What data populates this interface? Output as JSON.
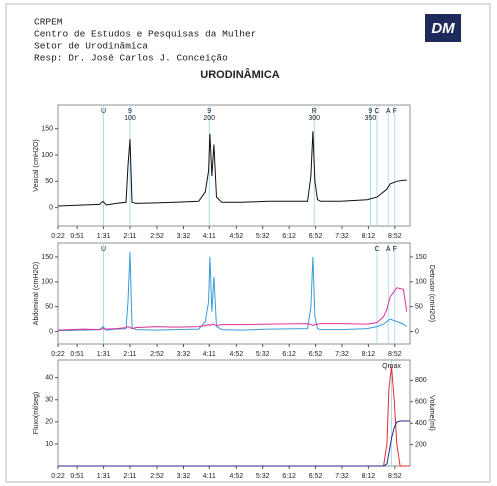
{
  "header": {
    "lines": [
      "CRPEM",
      "Centro de Estudos e Pesquisas da Mulher",
      "Setor de Urodinâmica",
      "Resp: Dr. José Carlos J. Conceição"
    ],
    "title": "URODINÂMICA",
    "logo": "DM"
  },
  "chart_data": [
    {
      "type": "line",
      "x": [
        22,
        60,
        85,
        90,
        95,
        110,
        125,
        128,
        131,
        134,
        140,
        170,
        200,
        235,
        245,
        250,
        252,
        255,
        258,
        262,
        270,
        300,
        340,
        400,
        405,
        408,
        411,
        415,
        420,
        450,
        490,
        505,
        515,
        520,
        525,
        535,
        545,
        550
      ],
      "series": [
        {
          "name": "Vesical",
          "color": "#111111",
          "values": [
            3,
            5,
            6,
            12,
            5,
            8,
            10,
            80,
            130,
            10,
            8,
            9,
            10,
            12,
            30,
            70,
            140,
            60,
            120,
            20,
            10,
            10,
            12,
            12,
            60,
            145,
            50,
            15,
            12,
            12,
            15,
            20,
            30,
            35,
            45,
            50,
            52,
            52
          ]
        }
      ],
      "ylabel": "Vesical (cmH2O)",
      "ylabel_color": "#111111",
      "xlim": [
        22,
        555
      ],
      "ylim": [
        -35,
        195
      ],
      "yticks": [
        0,
        50,
        100,
        150
      ],
      "xticks": [
        {
          "value": 22,
          "label": "0:22"
        },
        {
          "value": 51,
          "label": "0:51"
        },
        {
          "value": 91,
          "label": "1:31"
        },
        {
          "value": 131,
          "label": "2:11"
        },
        {
          "value": 172,
          "label": "2:52"
        },
        {
          "value": 212,
          "label": "3:32"
        },
        {
          "value": 251,
          "label": "4:11"
        },
        {
          "value": 292,
          "label": "4:52"
        },
        {
          "value": 332,
          "label": "5:32"
        },
        {
          "value": 372,
          "label": "6:12"
        },
        {
          "value": 412,
          "label": "6:52"
        },
        {
          "value": 452,
          "label": "7:32"
        },
        {
          "value": 492,
          "label": "8:12"
        },
        {
          "value": 532,
          "label": "8:52"
        }
      ],
      "markers": [
        {
          "x": 91,
          "label": "U"
        },
        {
          "x": 131,
          "label": "9",
          "sublabel": "100"
        },
        {
          "x": 251,
          "label": "9",
          "sublabel": "200"
        },
        {
          "x": 410,
          "label": "R",
          "sublabel": "300"
        },
        {
          "x": 495,
          "label": "9",
          "sublabel": "350"
        },
        {
          "x": 505,
          "label": "C"
        },
        {
          "x": 522,
          "label": "A"
        },
        {
          "x": 532,
          "label": "F"
        }
      ]
    },
    {
      "type": "line",
      "x": [
        22,
        60,
        85,
        90,
        95,
        110,
        125,
        128,
        131,
        134,
        140,
        170,
        200,
        235,
        245,
        250,
        252,
        255,
        258,
        262,
        270,
        300,
        340,
        400,
        405,
        408,
        411,
        415,
        420,
        450,
        490,
        505,
        515,
        520,
        525,
        535,
        545,
        550
      ],
      "series": [
        {
          "name": "Abdominal",
          "color": "#3a9ad9",
          "values": [
            2,
            3,
            4,
            10,
            3,
            5,
            6,
            60,
            160,
            8,
            4,
            3,
            4,
            5,
            20,
            60,
            150,
            40,
            110,
            10,
            4,
            3,
            5,
            6,
            50,
            150,
            30,
            6,
            4,
            4,
            6,
            10,
            15,
            20,
            25,
            20,
            15,
            10
          ]
        },
        {
          "name": "Detrusor",
          "color": "#e0309a",
          "axis": "y2",
          "values": [
            3,
            5,
            4,
            6,
            5,
            6,
            8,
            10,
            8,
            6,
            8,
            10,
            9,
            10,
            12,
            14,
            12,
            15,
            14,
            12,
            14,
            14,
            15,
            16,
            14,
            12,
            14,
            15,
            16,
            16,
            15,
            18,
            30,
            45,
            70,
            88,
            85,
            40
          ]
        }
      ],
      "ylabel": "Abdominal (cmH2O)",
      "ylabel_color": "#3aa050",
      "y2label": "Detrusor (cmH2O)",
      "y2label_color": "#e0309a",
      "xlim": [
        22,
        555
      ],
      "ylim": [
        -25,
        178
      ],
      "yticks": [
        0,
        50,
        100,
        150
      ],
      "y2lim": [
        -25,
        178
      ],
      "y2ticks": [
        0,
        50,
        100,
        150
      ],
      "xticks": [
        {
          "value": 22,
          "label": "0:22"
        },
        {
          "value": 51,
          "label": "0:51"
        },
        {
          "value": 91,
          "label": "1:31"
        },
        {
          "value": 131,
          "label": "2:11"
        },
        {
          "value": 172,
          "label": "2:52"
        },
        {
          "value": 212,
          "label": "3:32"
        },
        {
          "value": 251,
          "label": "4:11"
        },
        {
          "value": 292,
          "label": "4:52"
        },
        {
          "value": 332,
          "label": "5:32"
        },
        {
          "value": 372,
          "label": "6:12"
        },
        {
          "value": 412,
          "label": "6:52"
        },
        {
          "value": 452,
          "label": "7:32"
        },
        {
          "value": 492,
          "label": "8:12"
        },
        {
          "value": 532,
          "label": "8:52"
        }
      ],
      "markers": [
        {
          "x": 91,
          "label": "U"
        },
        {
          "x": 505,
          "label": "C"
        },
        {
          "x": 522,
          "label": "A"
        },
        {
          "x": 532,
          "label": "F"
        }
      ]
    },
    {
      "type": "line",
      "x": [
        22,
        200,
        400,
        515,
        520,
        523,
        527,
        531,
        535,
        540,
        545,
        555
      ],
      "series": [
        {
          "name": "Fluxo",
          "color": "#e03030",
          "values": [
            0,
            0,
            0,
            0,
            10,
            35,
            45,
            30,
            10,
            0,
            0,
            0
          ]
        },
        {
          "name": "Volume",
          "color": "#2a2a8a",
          "axis": "y2",
          "values": [
            0,
            0,
            0,
            0,
            20,
            120,
            260,
            360,
            410,
            420,
            420,
            420
          ]
        }
      ],
      "ylabel": "Fluxo(ml/seg)",
      "ylabel_color": "#e03030",
      "y2label": "Volume(ml)",
      "y2label_color": "#2a2a8a",
      "xlim": [
        22,
        555
      ],
      "ylim": [
        0,
        48
      ],
      "yticks": [
        10,
        20,
        30,
        40
      ],
      "y2lim": [
        0,
        990
      ],
      "y2ticks": [
        200,
        400,
        600,
        800
      ],
      "xticks": [
        {
          "value": 22,
          "label": "0:22"
        },
        {
          "value": 51,
          "label": "0:51"
        },
        {
          "value": 91,
          "label": "1:31"
        },
        {
          "value": 131,
          "label": "2:11"
        },
        {
          "value": 172,
          "label": "2:52"
        },
        {
          "value": 212,
          "label": "3:32"
        },
        {
          "value": 251,
          "label": "4:11"
        },
        {
          "value": 292,
          "label": "4:52"
        },
        {
          "value": 332,
          "label": "5:32"
        },
        {
          "value": 372,
          "label": "6:12"
        },
        {
          "value": 412,
          "label": "6:52"
        },
        {
          "value": 452,
          "label": "7:32"
        },
        {
          "value": 492,
          "label": "8:12"
        },
        {
          "value": 532,
          "label": "8:52"
        }
      ],
      "markers": [
        {
          "x": 527,
          "label": "Qmax"
        }
      ]
    }
  ]
}
